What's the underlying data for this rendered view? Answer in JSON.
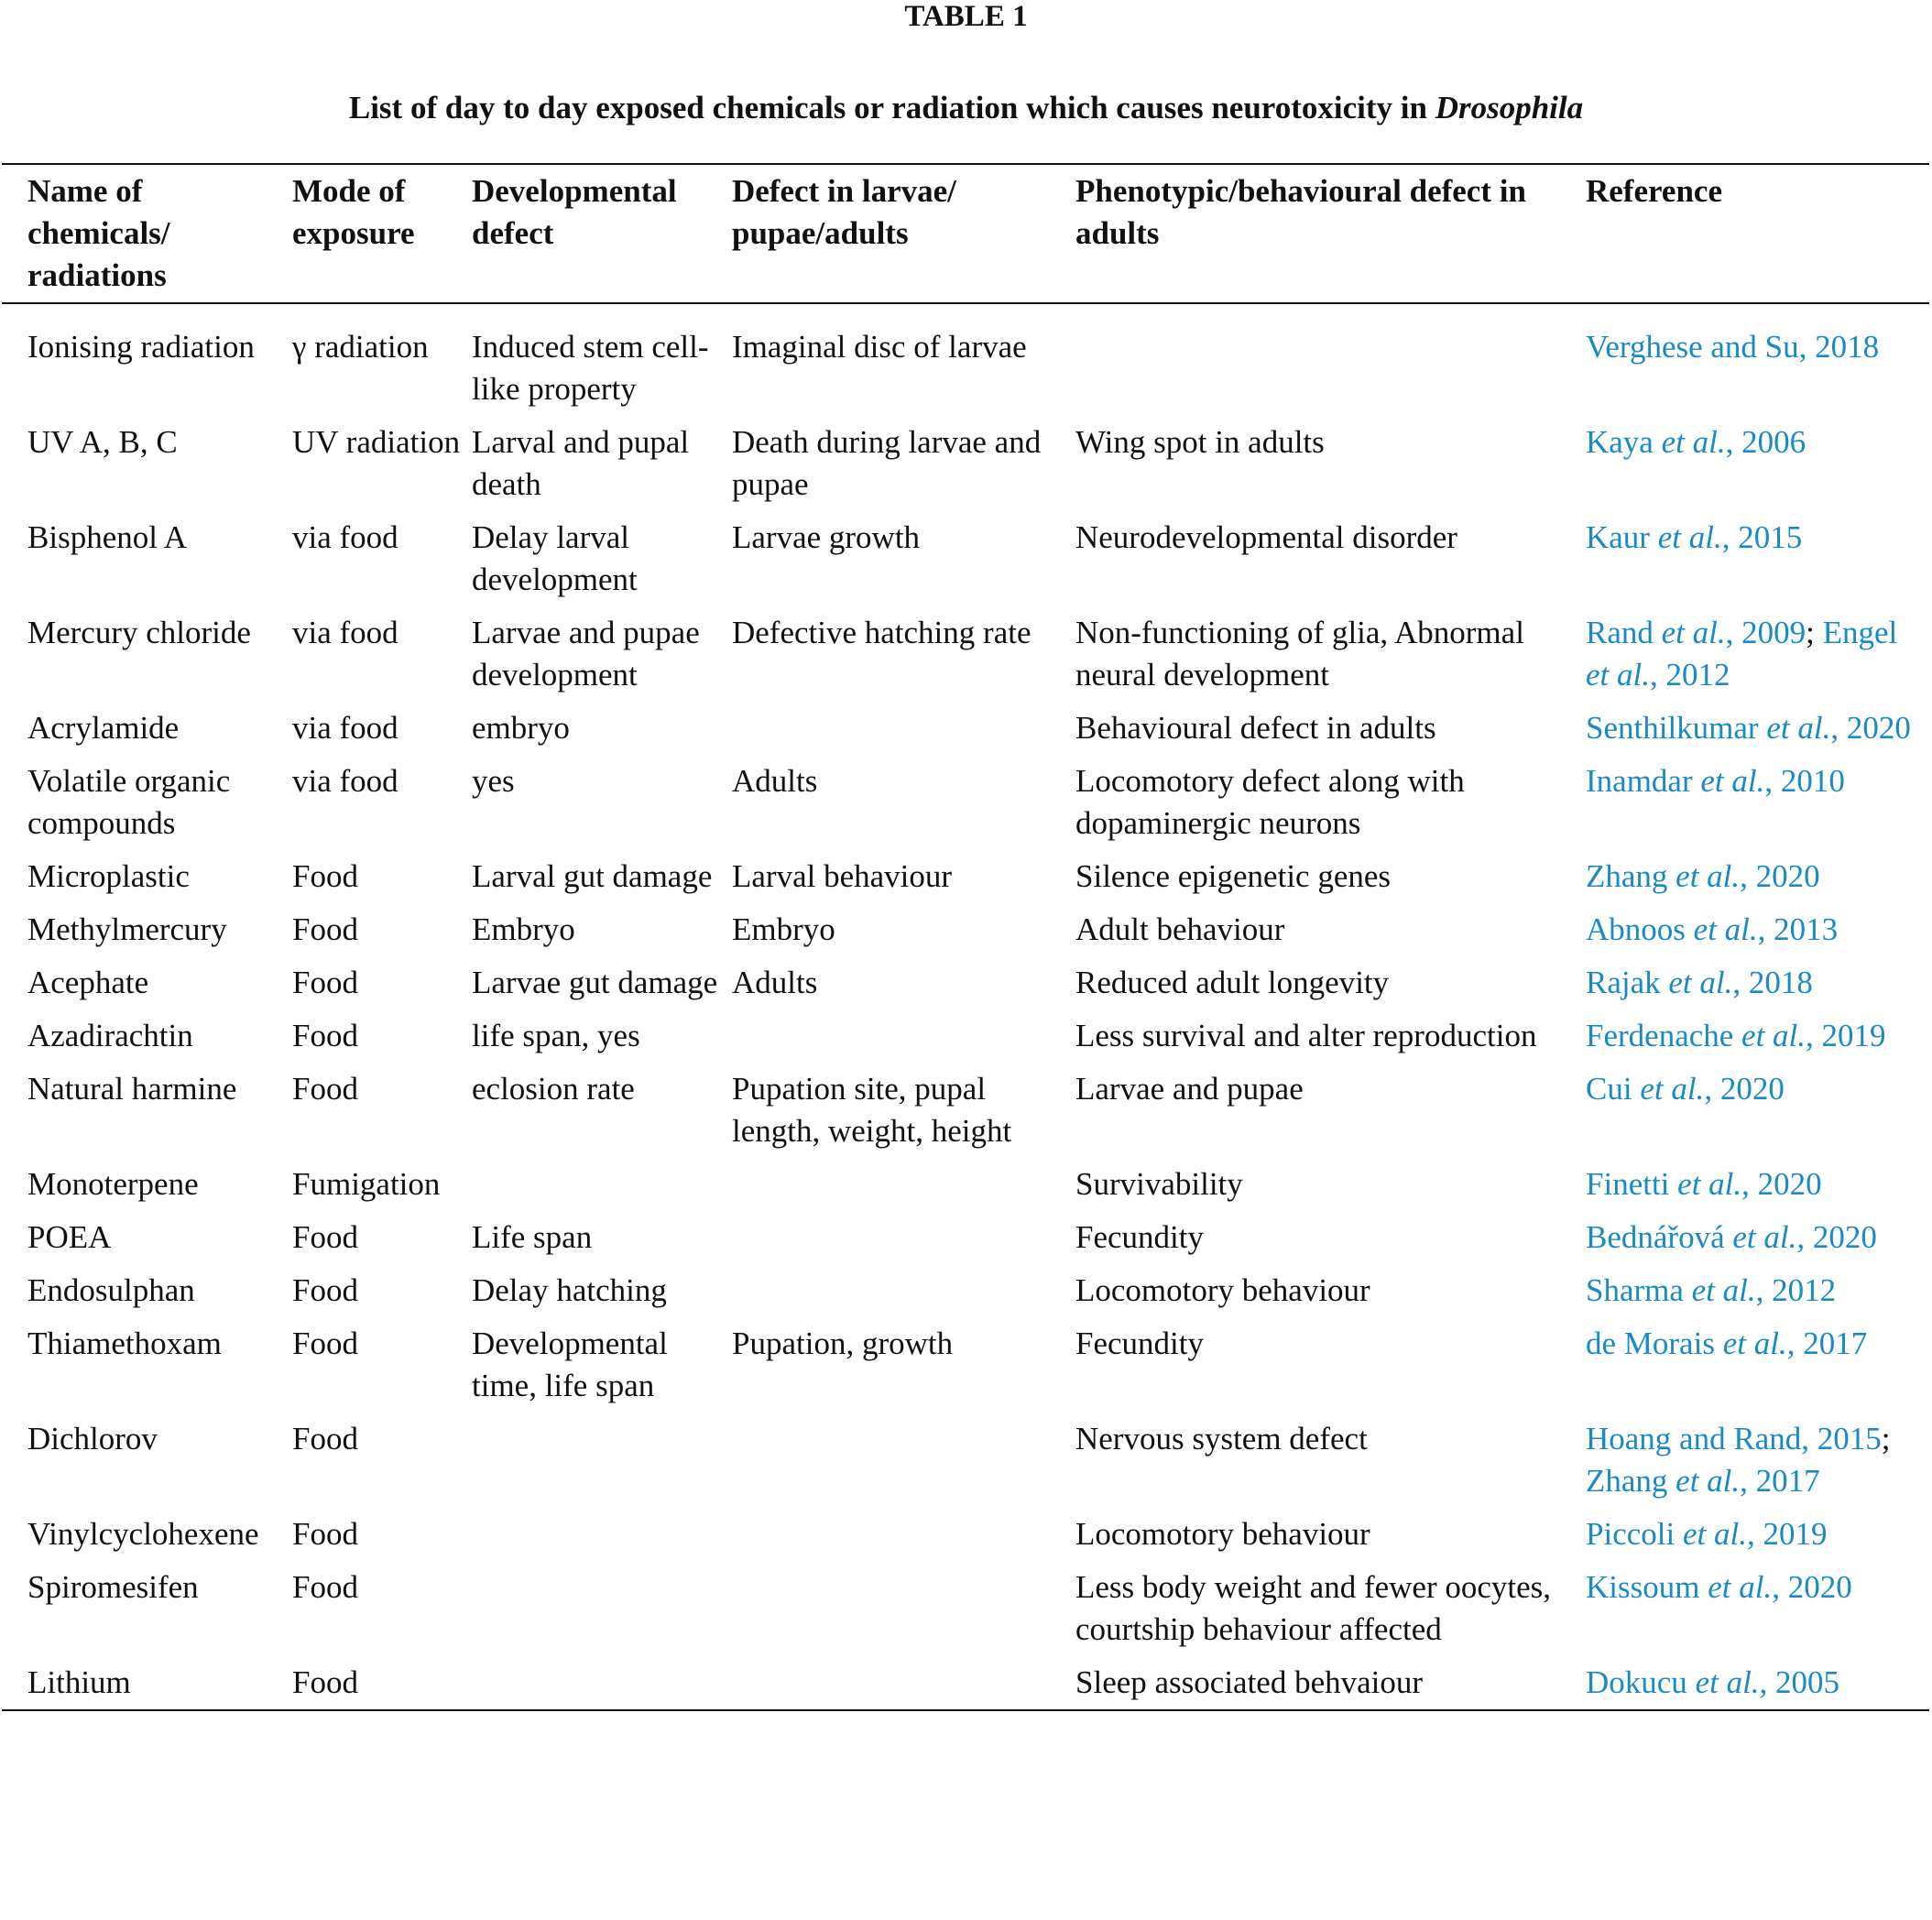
{
  "table": {
    "title": "TABLE 1",
    "caption": "List of day to day exposed chemicals or radiation which causes neurotoxicity in ",
    "caption_italic": "Drosophila",
    "link_color": "#1a8ac6",
    "headers": [
      "Name of chemicals/ radiations",
      "Mode of exposure",
      "Developmental defect",
      "Defect in larvae/ pupae/adults",
      "Phenotypic/behavioural defect in adults",
      "Reference"
    ],
    "rows": [
      {
        "name": "Ionising radiation",
        "mode": "γ radiation",
        "dev": "Induced stem cell-like property",
        "larvae": "Imaginal disc of larvae",
        "adult": "",
        "refs": [
          "Verghese and Su, 2018"
        ]
      },
      {
        "name": "UV A, B, C",
        "mode": "UV radiation",
        "dev": "Larval and pupal death",
        "larvae": "Death during larvae and pupae",
        "adult": "Wing spot in adults",
        "refs": [
          "Kaya et al., 2006"
        ]
      },
      {
        "name": "Bisphenol A",
        "mode": "via food",
        "dev": "Delay larval development",
        "larvae": "Larvae growth",
        "adult": "Neurodevelopmental disorder",
        "refs": [
          "Kaur et al., 2015"
        ]
      },
      {
        "name": "Mercury chloride",
        "mode": "via food",
        "dev": "Larvae and pupae development",
        "larvae": "Defective hatching rate",
        "adult": "Non-functioning of glia, Abnormal neural development",
        "refs": [
          "Rand et al., 2009",
          "Engel et al., 2012"
        ]
      },
      {
        "name": "Acrylamide",
        "mode": "via food",
        "dev": "embryo",
        "larvae": "",
        "adult": "Behavioural defect in adults",
        "refs": [
          "Senthilkumar et al., 2020"
        ]
      },
      {
        "name": "Volatile organic compounds",
        "mode": "via food",
        "dev": "yes",
        "larvae": "Adults",
        "adult": "Locomotory defect along with dopaminergic neurons",
        "refs": [
          "Inamdar et al., 2010"
        ]
      },
      {
        "name": "Microplastic",
        "mode": "Food",
        "dev": "Larval gut damage",
        "larvae": "Larval behaviour",
        "adult": "Silence epigenetic genes",
        "refs": [
          "Zhang et al., 2020"
        ]
      },
      {
        "name": "Methylmercury",
        "mode": "Food",
        "dev": "Embryo",
        "larvae": "Embryo",
        "adult": "Adult behaviour",
        "refs": [
          "Abnoos et al., 2013"
        ]
      },
      {
        "name": "Acephate",
        "mode": "Food",
        "dev": "Larvae gut damage",
        "larvae": "Adults",
        "adult": "Reduced adult longevity",
        "refs": [
          "Rajak et al., 2018"
        ]
      },
      {
        "name": "Azadirachtin",
        "mode": "Food",
        "dev": "life span, yes",
        "larvae": "",
        "adult": "Less survival and alter reproduction",
        "refs": [
          "Ferdenache et al., 2019"
        ]
      },
      {
        "name": "Natural harmine",
        "mode": "Food",
        "dev": "eclosion rate",
        "larvae": "Pupation site, pupal length, weight, height",
        "adult": "Larvae and pupae",
        "refs": [
          "Cui et al., 2020"
        ]
      },
      {
        "name": "Monoterpene",
        "mode": "Fumigation",
        "dev": "",
        "larvae": "",
        "adult": "Survivability",
        "refs": [
          "Finetti et al., 2020"
        ]
      },
      {
        "name": "POEA",
        "mode": "Food",
        "dev": "Life span",
        "larvae": "",
        "adult": "Fecundity",
        "refs": [
          "Bednářová et al., 2020"
        ]
      },
      {
        "name": "Endosulphan",
        "mode": "Food",
        "dev": "Delay hatching",
        "larvae": "",
        "adult": "Locomotory behaviour",
        "refs": [
          "Sharma et al., 2012"
        ]
      },
      {
        "name": "Thiamethoxam",
        "mode": "Food",
        "dev": "Developmental time, life span",
        "larvae": "Pupation, growth",
        "adult": "Fecundity",
        "refs": [
          "de Morais et al., 2017"
        ]
      },
      {
        "name": "Dichlorov",
        "mode": "Food",
        "dev": "",
        "larvae": "",
        "adult": "Nervous system defect",
        "refs": [
          "Hoang and Rand, 2015",
          "Zhang et al., 2017"
        ]
      },
      {
        "name": "Vinylcyclohexene",
        "mode": "Food",
        "dev": "",
        "larvae": "",
        "adult": "Locomotory behaviour",
        "refs": [
          "Piccoli et al., 2019"
        ]
      },
      {
        "name": "Spiromesifen",
        "mode": "Food",
        "dev": "",
        "larvae": "",
        "adult": "Less body weight and fewer oocytes, courtship behaviour affected",
        "refs": [
          "Kissoum et al., 2020"
        ]
      },
      {
        "name": "Lithium",
        "mode": "Food",
        "dev": "",
        "larvae": "",
        "adult": "Sleep associated behvaiour",
        "refs": [
          "Dokucu et al., 2005"
        ]
      }
    ]
  }
}
